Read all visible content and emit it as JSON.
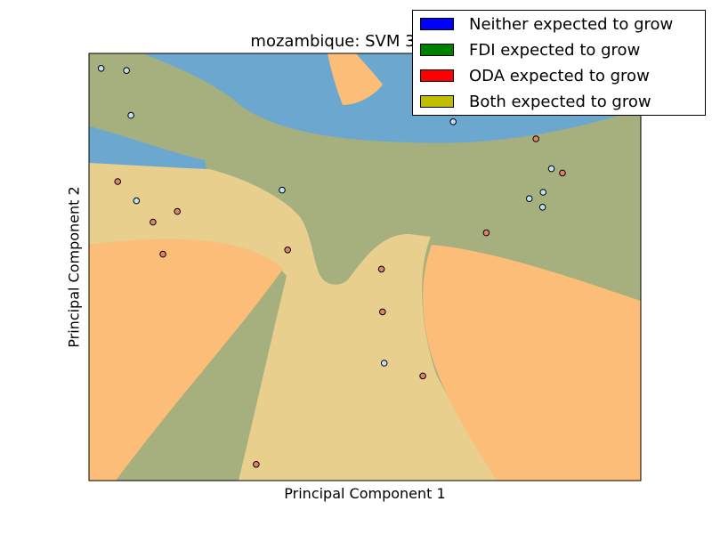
{
  "chart_data": {
    "type": "scatter",
    "title": "mozambique: SVM 3-Degree",
    "xlabel": "Principal Component 1",
    "ylabel": "Principal Component 2",
    "xlim": [
      0,
      10
    ],
    "ylim": [
      0,
      10
    ],
    "grid": false,
    "legend_position": "top-right",
    "legend": [
      {
        "label": "Neither expected to grow",
        "color": "#0000ff"
      },
      {
        "label": "FDI expected to grow",
        "color": "#008000"
      },
      {
        "label": "ODA expected to grow",
        "color": "#ff0000"
      },
      {
        "label": "Both expected to grow",
        "color": "#bfbf00"
      }
    ],
    "region_colors": {
      "neither": "#6ba7cf",
      "fdi": "#a5b07e",
      "oda": "#fcbd78",
      "both": "#e8cf8e"
    },
    "points": [
      {
        "x": 0.22,
        "y": 9.65,
        "class": "neither"
      },
      {
        "x": 0.68,
        "y": 9.6,
        "class": "neither"
      },
      {
        "x": 0.76,
        "y": 8.55,
        "class": "neither"
      },
      {
        "x": 0.52,
        "y": 7.0,
        "class": "oda"
      },
      {
        "x": 0.86,
        "y": 6.55,
        "class": "neither"
      },
      {
        "x": 1.6,
        "y": 6.3,
        "class": "oda"
      },
      {
        "x": 1.16,
        "y": 6.05,
        "class": "oda"
      },
      {
        "x": 1.34,
        "y": 5.3,
        "class": "oda"
      },
      {
        "x": 3.5,
        "y": 6.8,
        "class": "neither"
      },
      {
        "x": 3.6,
        "y": 5.4,
        "class": "oda"
      },
      {
        "x": 5.3,
        "y": 4.95,
        "class": "oda"
      },
      {
        "x": 5.32,
        "y": 3.95,
        "class": "oda"
      },
      {
        "x": 5.35,
        "y": 2.75,
        "class": "neither"
      },
      {
        "x": 6.05,
        "y": 2.45,
        "class": "oda"
      },
      {
        "x": 3.03,
        "y": 0.38,
        "class": "oda"
      },
      {
        "x": 6.6,
        "y": 8.4,
        "class": "neither"
      },
      {
        "x": 8.1,
        "y": 8.0,
        "class": "oda"
      },
      {
        "x": 8.38,
        "y": 7.3,
        "class": "neither"
      },
      {
        "x": 8.58,
        "y": 7.2,
        "class": "oda"
      },
      {
        "x": 7.98,
        "y": 6.6,
        "class": "neither"
      },
      {
        "x": 8.23,
        "y": 6.75,
        "class": "neither"
      },
      {
        "x": 8.22,
        "y": 6.4,
        "class": "neither"
      },
      {
        "x": 7.2,
        "y": 5.8,
        "class": "oda"
      }
    ]
  }
}
